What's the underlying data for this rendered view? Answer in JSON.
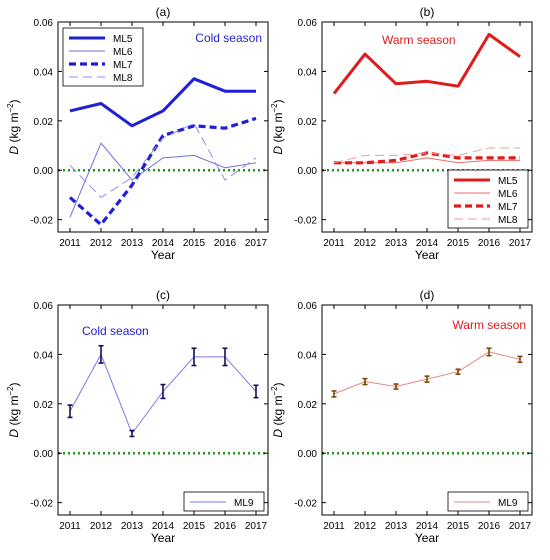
{
  "chart_data": [
    {
      "panel_label": "(a)",
      "type": "line",
      "season_label": "Cold season",
      "season_color": "#1f1fd6",
      "ylabel_main": "D",
      "ylabel_unit": "(kg m",
      "ylabel_exp": "−2",
      "ylabel_close": ")",
      "xlabel": "Year",
      "x": [
        "2011",
        "2012",
        "2013",
        "2014",
        "2015",
        "2016",
        "2017"
      ],
      "ylim": [
        -0.025,
        0.06
      ],
      "yticks": [
        "0.06",
        "0.04",
        "0.02",
        "0.00",
        "-0.02"
      ],
      "zero_line_color": "#1a9a1a",
      "legend_position": "top-left",
      "series": [
        {
          "name": "ML5",
          "values": [
            0.024,
            0.027,
            0.018,
            0.024,
            0.037,
            0.032,
            0.032
          ],
          "color": "#1f1fd6",
          "style": "thick-solid"
        },
        {
          "name": "ML6",
          "values": [
            -0.019,
            0.011,
            -0.004,
            0.005,
            0.006,
            0.001,
            0.003
          ],
          "color": "#6f6fe6",
          "style": "thin-solid"
        },
        {
          "name": "ML7",
          "values": [
            -0.011,
            -0.022,
            -0.006,
            0.014,
            0.018,
            0.017,
            0.021
          ],
          "color": "#1f1fd6",
          "style": "thick-dash"
        },
        {
          "name": "ML8",
          "values": [
            0.002,
            -0.011,
            -0.003,
            0.013,
            0.019,
            -0.004,
            0.005
          ],
          "color": "#8f8fee",
          "style": "thin-dash"
        }
      ]
    },
    {
      "panel_label": "(b)",
      "type": "line",
      "season_label": "Warm season",
      "season_color": "#e01b1b",
      "ylabel_main": "D",
      "ylabel_unit": "(kg m",
      "ylabel_exp": "−2",
      "ylabel_close": ")",
      "xlabel": "Year",
      "x": [
        "2011",
        "2012",
        "2013",
        "2014",
        "2015",
        "2016",
        "2017"
      ],
      "ylim": [
        -0.025,
        0.06
      ],
      "yticks": [
        "0.06",
        "0.04",
        "0.02",
        "0.00",
        "-0.02"
      ],
      "zero_line_color": "#1a9a1a",
      "legend_position": "bottom-right",
      "series": [
        {
          "name": "ML5",
          "values": [
            0.031,
            0.047,
            0.035,
            0.036,
            0.034,
            0.055,
            0.046
          ],
          "color": "#e01b1b",
          "style": "thick-solid"
        },
        {
          "name": "ML6",
          "values": [
            0.003,
            0.003,
            0.003,
            0.005,
            0.003,
            0.004,
            0.004
          ],
          "color": "#ef6b6b",
          "style": "thin-solid"
        },
        {
          "name": "ML7",
          "values": [
            0.003,
            0.003,
            0.004,
            0.007,
            0.005,
            0.005,
            0.005
          ],
          "color": "#e01b1b",
          "style": "thick-dash"
        },
        {
          "name": "ML8",
          "values": [
            0.003,
            0.006,
            0.006,
            0.007,
            0.006,
            0.009,
            0.009
          ],
          "color": "#f29a9a",
          "style": "thin-dash"
        }
      ]
    },
    {
      "panel_label": "(c)",
      "type": "line",
      "season_label": "Cold season",
      "season_color": "#1f1fd6",
      "ylabel_main": "D",
      "ylabel_unit": "(kg m",
      "ylabel_exp": "−2",
      "ylabel_close": ")",
      "xlabel": "Year",
      "x": [
        "2011",
        "2012",
        "2013",
        "2014",
        "2015",
        "2016",
        "2017"
      ],
      "ylim": [
        -0.025,
        0.06
      ],
      "yticks": [
        "0.06",
        "0.04",
        "0.02",
        "0.00",
        "-0.02"
      ],
      "zero_line_color": "#1a9a1a",
      "legend_position": "bottom-right",
      "series": [
        {
          "name": "ML9",
          "values": [
            0.017,
            0.04,
            0.008,
            0.025,
            0.039,
            0.039,
            0.025
          ],
          "errors": [
            0.0025,
            0.0035,
            0.0012,
            0.0028,
            0.0035,
            0.0035,
            0.0025
          ],
          "color": "#7a7aee",
          "error_color": "#101060",
          "style": "thin-solid"
        }
      ]
    },
    {
      "panel_label": "(d)",
      "type": "line",
      "season_label": "Warm season",
      "season_color": "#e01b1b",
      "ylabel_main": "D",
      "ylabel_unit": "(kg m",
      "ylabel_exp": "−2",
      "ylabel_close": ")",
      "xlabel": "Year",
      "x": [
        "2011",
        "2012",
        "2013",
        "2014",
        "2015",
        "2016",
        "2017"
      ],
      "ylim": [
        -0.025,
        0.06
      ],
      "yticks": [
        "0.06",
        "0.04",
        "0.02",
        "0.00",
        "-0.02"
      ],
      "zero_line_color": "#1a9a1a",
      "legend_position": "bottom-right",
      "series": [
        {
          "name": "ML9",
          "values": [
            0.024,
            0.029,
            0.027,
            0.03,
            0.033,
            0.041,
            0.038
          ],
          "errors": [
            0.0012,
            0.0012,
            0.001,
            0.0012,
            0.001,
            0.0015,
            0.0012
          ],
          "color": "#e08a8a",
          "error_color": "#7a4a00",
          "style": "thin-solid"
        }
      ]
    }
  ]
}
